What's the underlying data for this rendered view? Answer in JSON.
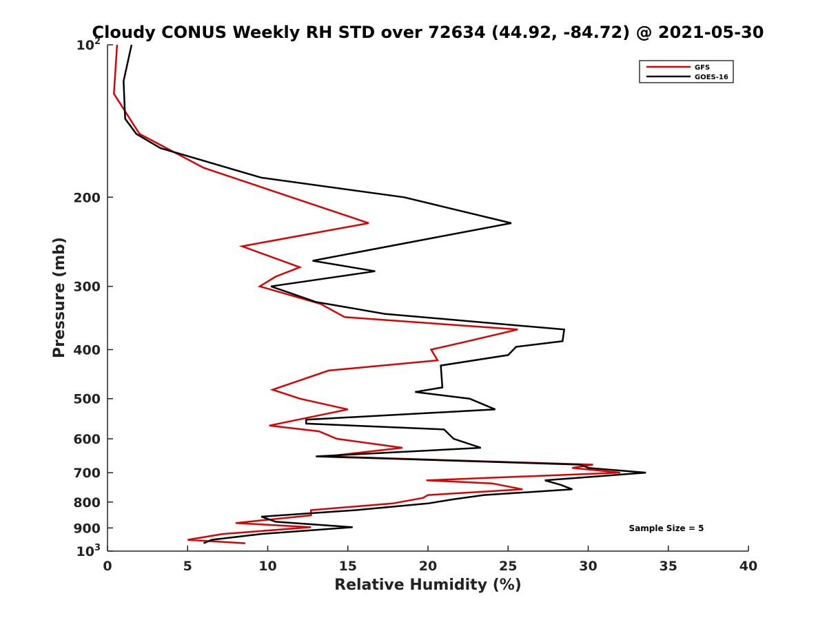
{
  "chart_data": {
    "type": "line",
    "title": "Cloudy CONUS Weekly RH STD over 72634 (44.92, -84.72) @ 2021-05-30",
    "xlabel": "Relative Humidity (%)",
    "ylabel": "Pressure (mb)",
    "xlim": [
      0,
      40
    ],
    "ylim": [
      100,
      1000
    ],
    "yscale": "log",
    "y_reversed": true,
    "x_ticks": [
      "0",
      "5",
      "10",
      "15",
      "20",
      "25",
      "30",
      "35",
      "40"
    ],
    "y_ticks": [
      {
        "value": 100,
        "label": "10",
        "sup": "2"
      },
      {
        "value": 200,
        "label": "200"
      },
      {
        "value": 300,
        "label": "300"
      },
      {
        "value": 400,
        "label": "400"
      },
      {
        "value": 500,
        "label": "500"
      },
      {
        "value": 600,
        "label": "600"
      },
      {
        "value": 700,
        "label": "700"
      },
      {
        "value": 800,
        "label": "800"
      },
      {
        "value": 900,
        "label": "900"
      },
      {
        "value": 1000,
        "label": "10",
        "sup": "3"
      }
    ],
    "grid": false,
    "legend_position": "top-right",
    "annotation": "Sample Size = 5",
    "series": [
      {
        "name": "GFS",
        "color": "#dd0000",
        "points": [
          [
            0.6,
            100
          ],
          [
            0.4,
            125
          ],
          [
            2.0,
            150
          ],
          [
            6.0,
            175
          ],
          [
            16.3,
            225
          ],
          [
            8.4,
            250
          ],
          [
            12.0,
            275
          ],
          [
            10.5,
            287
          ],
          [
            9.5,
            300
          ],
          [
            13.3,
            325
          ],
          [
            14.8,
            345
          ],
          [
            25.6,
            365
          ],
          [
            22.5,
            385
          ],
          [
            20.2,
            400
          ],
          [
            20.6,
            420
          ],
          [
            13.8,
            440
          ],
          [
            10.3,
            480
          ],
          [
            12.0,
            500
          ],
          [
            15.0,
            525
          ],
          [
            10.1,
            565
          ],
          [
            13.2,
            580
          ],
          [
            14.3,
            600
          ],
          [
            18.4,
            625
          ],
          [
            13.7,
            650
          ],
          [
            30.3,
            675
          ],
          [
            29.0,
            685
          ],
          [
            32.0,
            700
          ],
          [
            19.9,
            725
          ],
          [
            24.0,
            735
          ],
          [
            25.9,
            755
          ],
          [
            20.0,
            775
          ],
          [
            19.7,
            785
          ],
          [
            17.8,
            805
          ],
          [
            12.7,
            830
          ],
          [
            12.7,
            850
          ],
          [
            8.0,
            880
          ],
          [
            12.7,
            897
          ],
          [
            7.2,
            925
          ],
          [
            5.0,
            950
          ],
          [
            8.6,
            965
          ]
        ]
      },
      {
        "name": "GOES-16",
        "color": "#000000",
        "points": [
          [
            1.5,
            100
          ],
          [
            1.0,
            118
          ],
          [
            1.1,
            140
          ],
          [
            1.8,
            150
          ],
          [
            3.3,
            160
          ],
          [
            9.6,
            183
          ],
          [
            18.5,
            200
          ],
          [
            25.2,
            225
          ],
          [
            12.8,
            267
          ],
          [
            16.7,
            280
          ],
          [
            10.2,
            300
          ],
          [
            13.0,
            322
          ],
          [
            17.3,
            340
          ],
          [
            28.5,
            365
          ],
          [
            28.4,
            385
          ],
          [
            25.5,
            395
          ],
          [
            25.0,
            410
          ],
          [
            20.8,
            430
          ],
          [
            20.9,
            475
          ],
          [
            19.2,
            485
          ],
          [
            22.6,
            500
          ],
          [
            24.2,
            525
          ],
          [
            12.4,
            550
          ],
          [
            12.4,
            560
          ],
          [
            21.0,
            575
          ],
          [
            21.6,
            600
          ],
          [
            23.3,
            625
          ],
          [
            13.0,
            650
          ],
          [
            29.5,
            675
          ],
          [
            30.0,
            685
          ],
          [
            33.6,
            700
          ],
          [
            27.3,
            725
          ],
          [
            28.3,
            740
          ],
          [
            29.0,
            755
          ],
          [
            23.5,
            775
          ],
          [
            21.6,
            790
          ],
          [
            20.0,
            805
          ],
          [
            15.5,
            830
          ],
          [
            9.6,
            855
          ],
          [
            10.5,
            875
          ],
          [
            15.3,
            897
          ],
          [
            9.6,
            925
          ],
          [
            6.5,
            950
          ],
          [
            6.0,
            965
          ]
        ]
      }
    ]
  }
}
